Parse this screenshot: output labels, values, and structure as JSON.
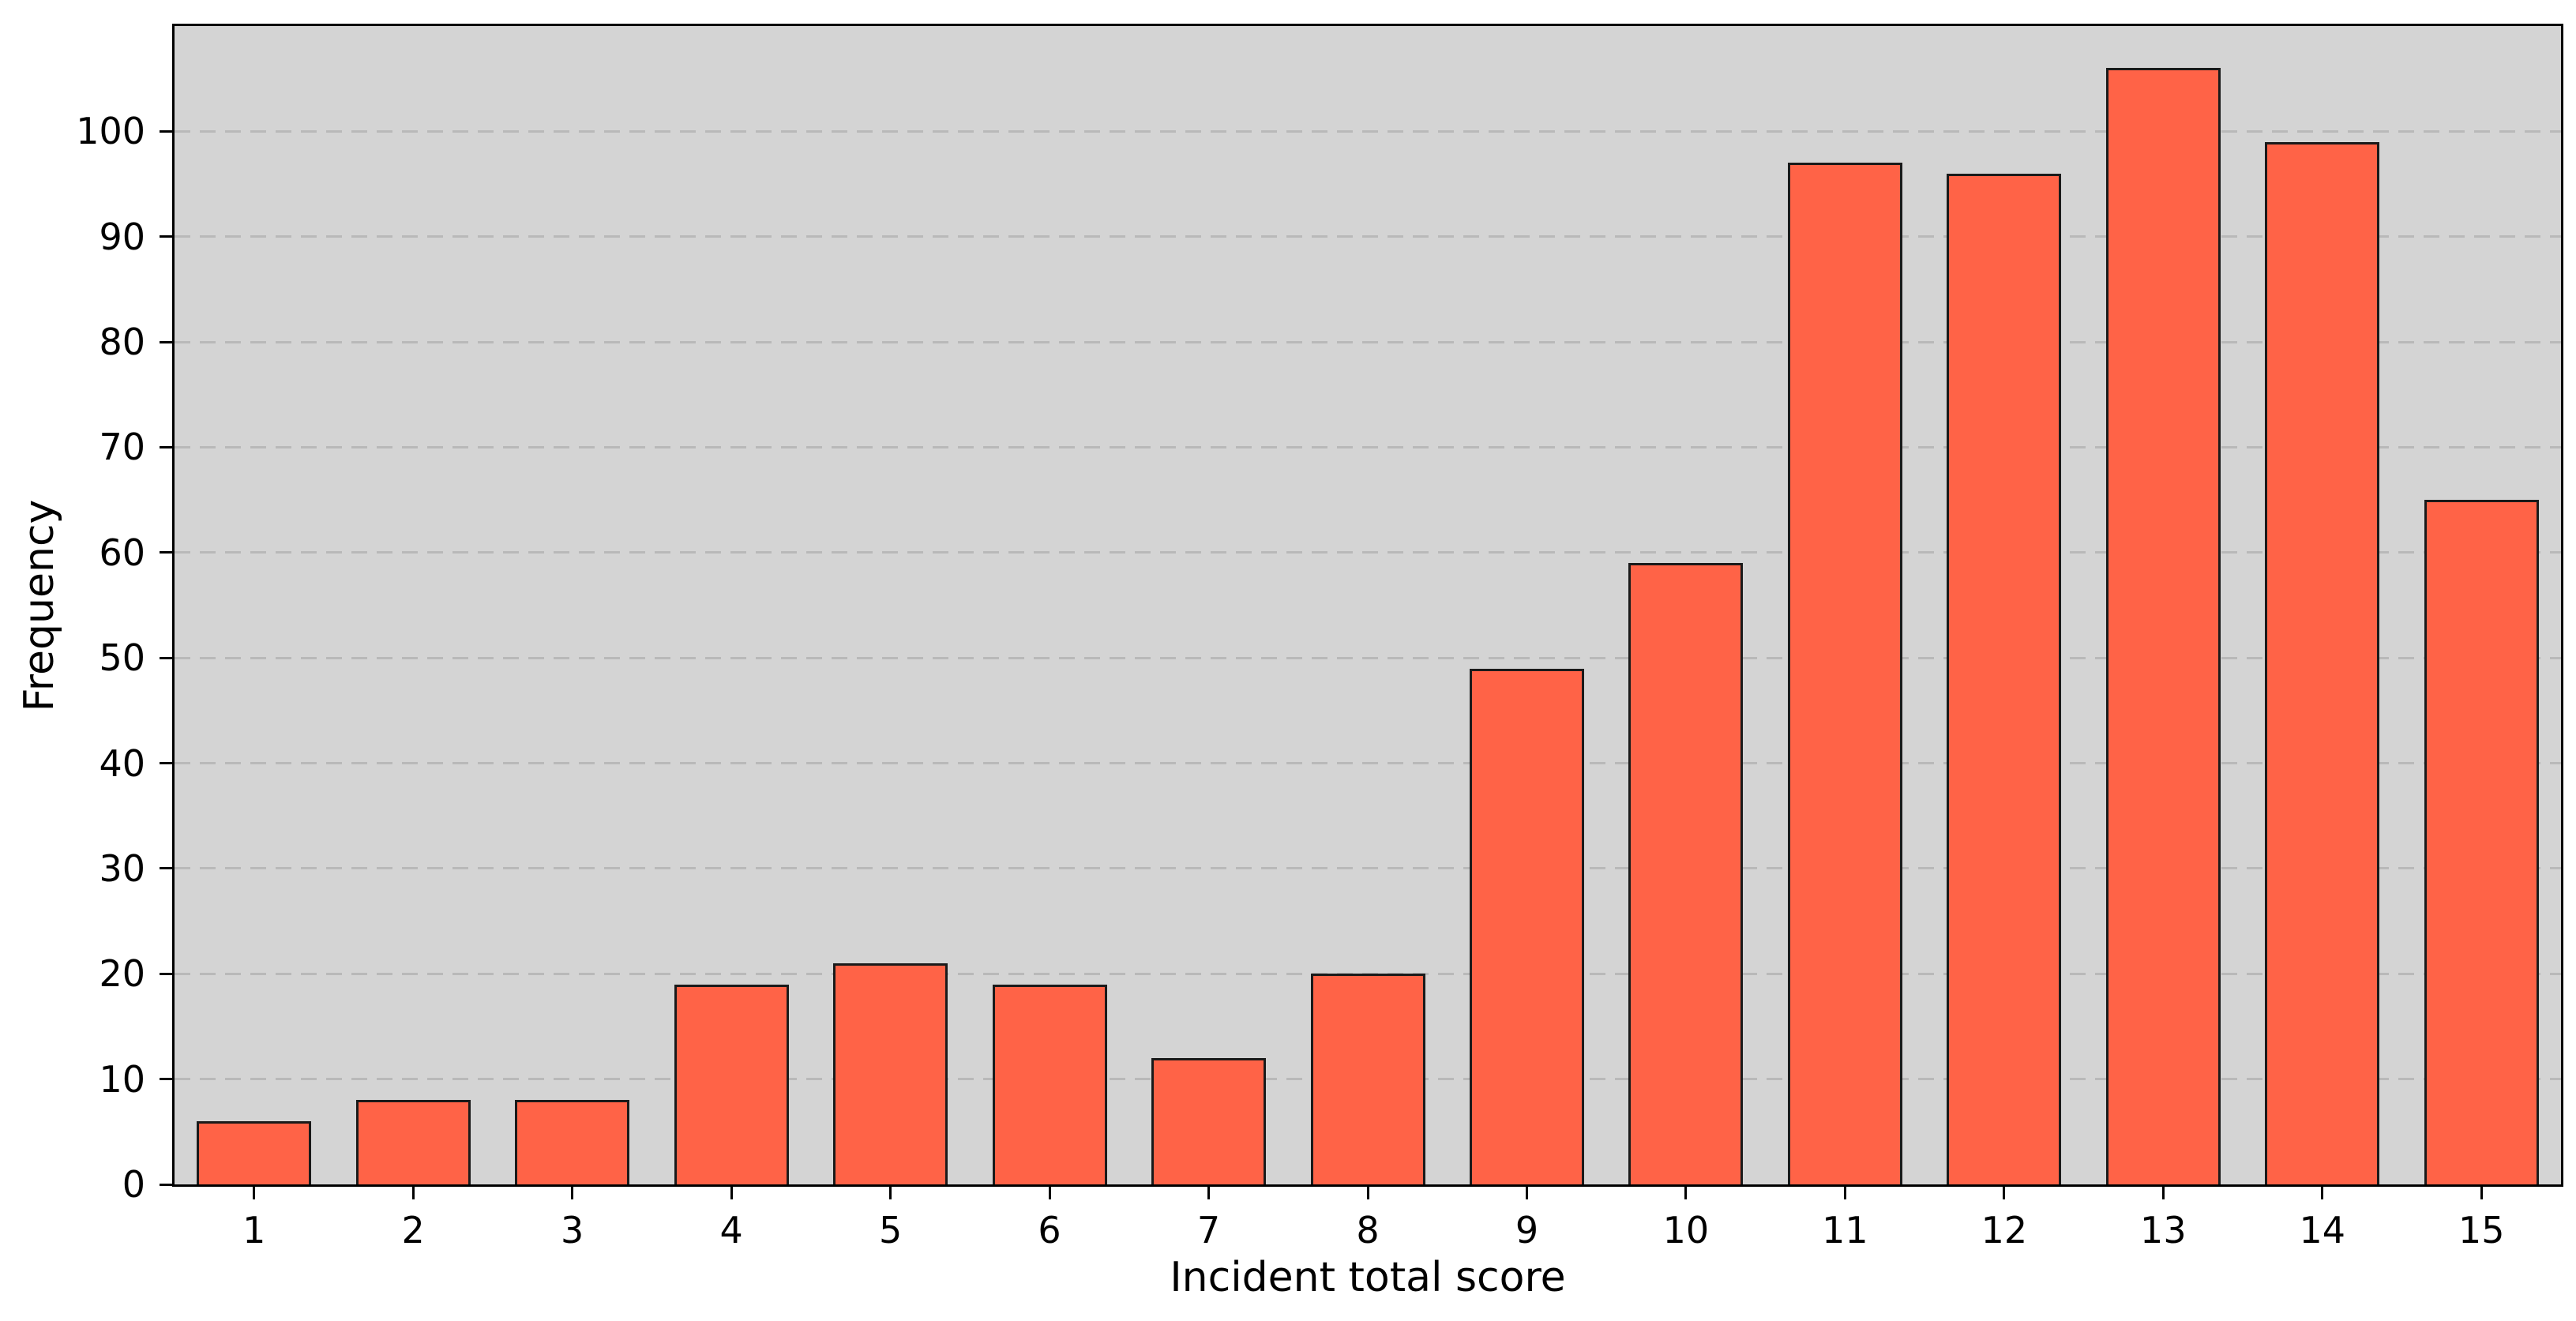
{
  "chart_data": {
    "type": "bar",
    "title": "",
    "xlabel": "Incident total score",
    "ylabel": "Frequency",
    "categories": [
      "1",
      "2",
      "3",
      "4",
      "5",
      "6",
      "7",
      "8",
      "9",
      "10",
      "11",
      "12",
      "13",
      "14",
      "15"
    ],
    "values": [
      6,
      8,
      8,
      19,
      21,
      19,
      12,
      20,
      49,
      59,
      97,
      96,
      106,
      99,
      65
    ],
    "yticks": [
      0,
      10,
      20,
      30,
      40,
      50,
      60,
      70,
      80,
      90,
      100
    ],
    "ylim": [
      0,
      110
    ],
    "grid": {
      "axis": "y",
      "style": "dashed",
      "on": true
    },
    "legend": "none",
    "colors": {
      "bar_fill": "#FF6347",
      "bar_edge": "#1A1A1A",
      "plot_background": "#D4D4D4",
      "figure_background": "#FFFFFF",
      "grid_color": "#B9B9B9",
      "spine_color": "#000000",
      "text_color": "#000000"
    }
  }
}
